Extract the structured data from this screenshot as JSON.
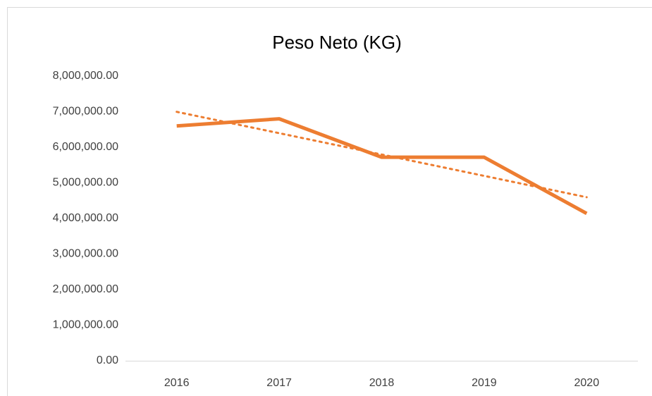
{
  "chart_data": {
    "type": "line",
    "title": "Peso Neto (KG)",
    "categories": [
      "2016",
      "2017",
      "2018",
      "2019",
      "2020"
    ],
    "series": [
      {
        "name": "Peso Neto (KG)",
        "color": "#ed7d31",
        "values": [
          6600000,
          6800000,
          5720000,
          5720000,
          4140000
        ]
      }
    ],
    "trendline": {
      "type": "linear",
      "style": "dotted"
    },
    "ylim": [
      0,
      8000000
    ],
    "yticks": [
      {
        "value": 0,
        "label": "0.00"
      },
      {
        "value": 1000000,
        "label": "1,000,000.00"
      },
      {
        "value": 2000000,
        "label": "2,000,000.00"
      },
      {
        "value": 3000000,
        "label": "3,000,000.00"
      },
      {
        "value": 4000000,
        "label": "4,000,000.00"
      },
      {
        "value": 5000000,
        "label": "5,000,000.00"
      },
      {
        "value": 6000000,
        "label": "6,000,000.00"
      },
      {
        "value": 7000000,
        "label": "7,000,000.00"
      },
      {
        "value": 8000000,
        "label": "8,000,000.00"
      }
    ],
    "grid": false
  }
}
